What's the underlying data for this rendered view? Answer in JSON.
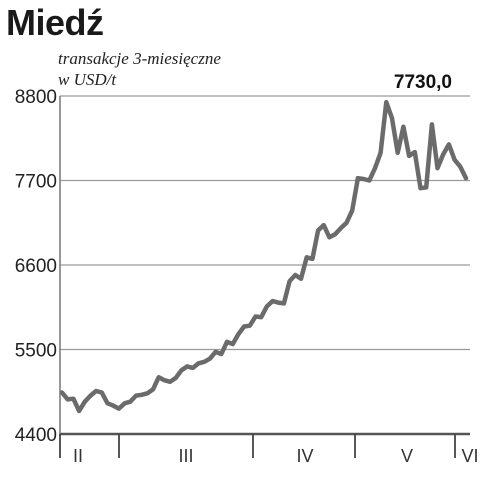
{
  "chart_data": {
    "type": "line",
    "title": "Miedź",
    "subtitle_lines": [
      "transakcje 3-miesięczne",
      "w USD/t"
    ],
    "last_value_label": "7730,0",
    "ylim": [
      4400,
      8800
    ],
    "yticks": [
      4400,
      5500,
      6600,
      7700,
      8800
    ],
    "ytick_labels": [
      "4400",
      "5500",
      "6600",
      "7700",
      "8800"
    ],
    "grid": true,
    "month_labels": [
      "II",
      "III",
      "IV",
      "V",
      "VI"
    ],
    "series": [
      {
        "color": "#6b6b6b",
        "values": [
          4940,
          4850,
          4860,
          4700,
          4820,
          4900,
          4960,
          4940,
          4800,
          4770,
          4730,
          4800,
          4820,
          4900,
          4910,
          4930,
          4980,
          5140,
          5100,
          5080,
          5130,
          5230,
          5280,
          5260,
          5320,
          5340,
          5380,
          5470,
          5440,
          5600,
          5570,
          5700,
          5800,
          5810,
          5930,
          5920,
          6060,
          6130,
          6110,
          6100,
          6390,
          6470,
          6420,
          6700,
          6680,
          7050,
          7120,
          6960,
          7000,
          7080,
          7150,
          7310,
          7730,
          7720,
          7700,
          7860,
          8060,
          8720,
          8510,
          8060,
          8400,
          8020,
          8070,
          7600,
          7610,
          8430,
          7860,
          8040,
          8170,
          7970,
          7880,
          7730
        ]
      }
    ]
  }
}
